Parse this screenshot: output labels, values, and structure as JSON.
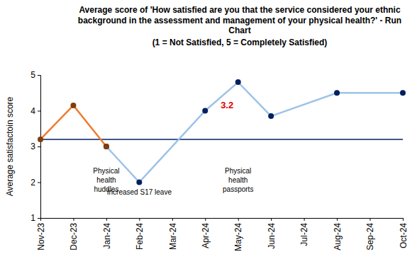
{
  "chart_data": {
    "type": "line",
    "title": [
      "Average score of 'How satisfied are you that the service considered your ethnic",
      "background in the assessment and management of your physical health?' - Run",
      "Chart"
    ],
    "subtitle": "(1 = Not Satisfied, 5 = Completely Satisfied)",
    "y_label": "Average satisfactoin score",
    "categories": [
      "Nov-23",
      "Dec-23",
      "Jan-24",
      "Feb-24",
      "Mar-24",
      "Apr-24",
      "May-24",
      "Jun-24",
      "Jul-24",
      "Aug-24",
      "Sep-24",
      "Oct-24"
    ],
    "series": [
      {
        "color": "#ed7d31",
        "marker": "circle",
        "line_style": "solid",
        "x": [
          "Nov-23",
          "Dec-23",
          "Jan-24"
        ],
        "values": [
          3.2,
          4.15,
          3.0
        ]
      },
      {
        "color": "#9dc3e6",
        "marker": "circle",
        "line_style": "solid",
        "x": [
          "Jan-24",
          "Feb-24",
          "Apr-24",
          "May-24",
          "Jun-24",
          "Aug-24",
          "Oct-24"
        ],
        "values": [
          3.0,
          2.0,
          4.0,
          4.8,
          3.85,
          4.5,
          4.5
        ]
      }
    ],
    "centre_line": 3.2,
    "annotations": [
      {
        "text": [
          "Physical",
          "health",
          "huddles"
        ],
        "x": "Jan-24",
        "y": 2.25
      },
      {
        "text": [
          "Increased S17 leave"
        ],
        "x": "Feb-24",
        "y": 1.65
      },
      {
        "text": [
          "Physical",
          "health",
          "passports"
        ],
        "x": "May-24",
        "y": 2.25
      }
    ],
    "ylim": [
      1,
      5
    ],
    "yticks": [
      1,
      2,
      3,
      4,
      5
    ],
    "grid": false
  }
}
